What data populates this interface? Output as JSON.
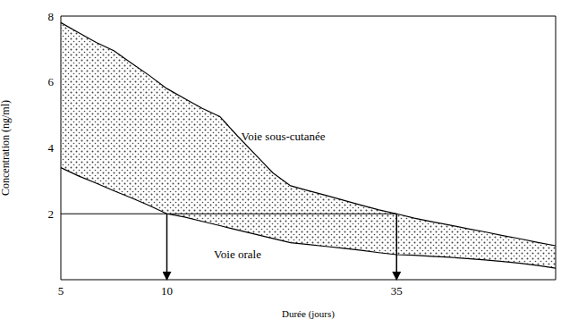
{
  "chart_data": {
    "type": "area",
    "x_label": "Durée (jours)",
    "y_label": "Concentration (ng/ml)",
    "color": "#444444",
    "categories": [
      "5",
      null,
      null,
      null,
      null,
      null,
      "10",
      null,
      null,
      null,
      null,
      null,
      null,
      null,
      null,
      null,
      null,
      null,
      null,
      "35",
      null,
      null,
      null,
      null,
      null,
      null,
      null,
      null,
      null
    ],
    "series": [
      {
        "name": "Voie sous-cutanée",
        "color": "#000000",
        "values": [
          7.8,
          7.5,
          7.2,
          6.95,
          6.57,
          6.2,
          5.8,
          5.5,
          5.2,
          4.95,
          4.36,
          3.8,
          3.24,
          2.85,
          2.7,
          2.56,
          2.41,
          2.26,
          2.12,
          2.0,
          1.87,
          1.76,
          1.66,
          1.55,
          1.45,
          1.34,
          1.24,
          1.13,
          1.03
        ]
      },
      {
        "name": "Voie orale",
        "color": "#000000",
        "values": [
          3.4,
          3.15,
          2.93,
          2.7,
          2.48,
          2.25,
          2.0,
          1.9,
          1.77,
          1.64,
          1.51,
          1.38,
          1.25,
          1.12,
          1.07,
          1.01,
          0.95,
          0.89,
          0.82,
          0.76,
          0.74,
          0.71,
          0.68,
          0.64,
          0.6,
          0.55,
          0.5,
          0.43,
          0.35
        ]
      }
    ],
    "ylim": [
      0,
      8
    ],
    "yticks": [
      2,
      4,
      6,
      8
    ],
    "reference_line": {
      "y": 2.0,
      "from": "5",
      "to": "35"
    },
    "arrows": [
      "10",
      "35"
    ]
  }
}
